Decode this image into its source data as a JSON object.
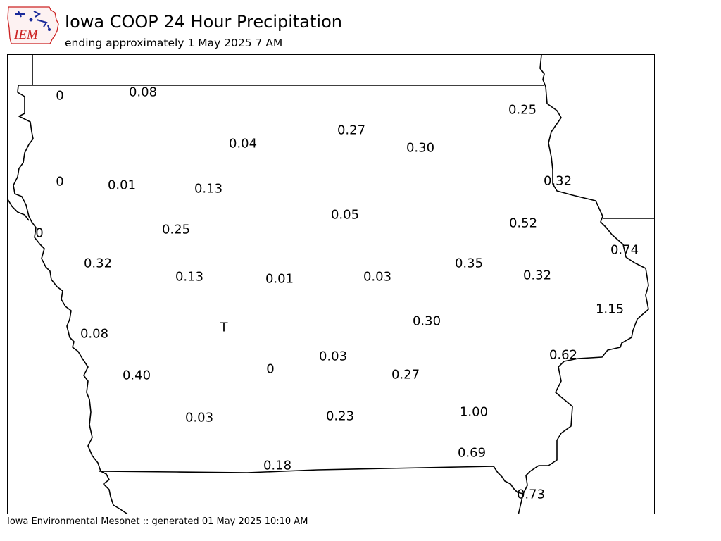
{
  "header": {
    "title": "Iowa COOP 24 Hour Precipitation",
    "subtitle": "ending approximately 1 May 2025 7 AM",
    "logo_text": "IEM"
  },
  "footer": {
    "credit": "Iowa Environmental Mesonet :: generated 01 May 2025 10:10 AM"
  },
  "colors": {
    "logo_text": "#cc2222",
    "logo_accent": "#1a2a9a",
    "border": "#000000"
  },
  "stations": [
    {
      "id": "s01",
      "value": "0"
    },
    {
      "id": "s02",
      "value": "0.08"
    },
    {
      "id": "s03",
      "value": "0.25"
    },
    {
      "id": "s04",
      "value": "0.27"
    },
    {
      "id": "s05",
      "value": "0.04"
    },
    {
      "id": "s06",
      "value": "0.30"
    },
    {
      "id": "s07",
      "value": "0"
    },
    {
      "id": "s08",
      "value": "0.01"
    },
    {
      "id": "s09",
      "value": "0.13"
    },
    {
      "id": "s10",
      "value": "0.32"
    },
    {
      "id": "s11",
      "value": "0.05"
    },
    {
      "id": "s12",
      "value": "0"
    },
    {
      "id": "s13",
      "value": "0.25"
    },
    {
      "id": "s14",
      "value": "0.52"
    },
    {
      "id": "s15",
      "value": "0.74"
    },
    {
      "id": "s16",
      "value": "0.32"
    },
    {
      "id": "s17",
      "value": "0.35"
    },
    {
      "id": "s18",
      "value": "0.13"
    },
    {
      "id": "s19",
      "value": "0.01"
    },
    {
      "id": "s20",
      "value": "0.03"
    },
    {
      "id": "s21",
      "value": "0.32"
    },
    {
      "id": "s22",
      "value": "1.15"
    },
    {
      "id": "s23",
      "value": "T"
    },
    {
      "id": "s24",
      "value": "0.30"
    },
    {
      "id": "s25",
      "value": "0.08"
    },
    {
      "id": "s26",
      "value": "0.62"
    },
    {
      "id": "s27",
      "value": "0.03"
    },
    {
      "id": "s28",
      "value": "0"
    },
    {
      "id": "s29",
      "value": "0.40"
    },
    {
      "id": "s30",
      "value": "0.27"
    },
    {
      "id": "s31",
      "value": "1.00"
    },
    {
      "id": "s32",
      "value": "0.03"
    },
    {
      "id": "s33",
      "value": "0.23"
    },
    {
      "id": "s34",
      "value": "0.69"
    },
    {
      "id": "s35",
      "value": "0.18"
    },
    {
      "id": "s36",
      "value": "0.73"
    }
  ]
}
